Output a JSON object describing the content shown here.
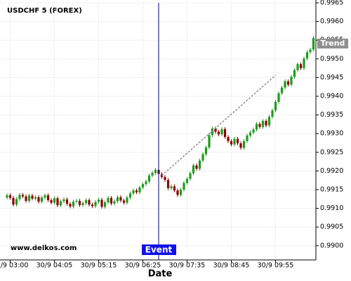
{
  "chart_data": {
    "type": "candlestick",
    "title": "USDCHF 5 (FOREX)",
    "x_label": "Date",
    "watermark": "www.delkos.com",
    "up_color": "#1e9a1e",
    "down_color": "#8b0000",
    "grid": true,
    "ylim": [
      0.98962,
      0.9965
    ],
    "yticks": [
      {
        "value": 0.99,
        "label": "0.9900"
      },
      0.9905,
      {
        "value": 0.991,
        "label": "0.9910"
      },
      0.9915,
      {
        "value": 0.992,
        "label": "0.9920"
      },
      0.9925,
      {
        "value": 0.993,
        "label": "0.9930"
      },
      0.9935,
      {
        "value": 0.994,
        "label": "0.9940"
      },
      0.9945,
      {
        "value": 0.995,
        "label": "0.9950"
      },
      0.9955,
      {
        "value": 0.996,
        "label": "0.9960"
      },
      0.9965
    ],
    "categories": [
      null,
      "30/9 03:00",
      null,
      null,
      null,
      null,
      null,
      null,
      null,
      null,
      null,
      null,
      null,
      null,
      null,
      "30/9 04:05",
      null,
      null,
      null,
      null,
      null,
      null,
      null,
      null,
      null,
      null,
      null,
      null,
      null,
      "30/9 05:15",
      null,
      null,
      null,
      null,
      null,
      null,
      null,
      null,
      null,
      null,
      null,
      null,
      null,
      "30/9 06:25",
      null,
      null,
      null,
      null,
      null,
      null,
      null,
      null,
      null,
      null,
      null,
      null,
      null,
      "30/9 07:35",
      null,
      null,
      null,
      null,
      null,
      null,
      null,
      null,
      null,
      null,
      null,
      null,
      null,
      "30/9 08:45",
      null,
      null,
      null,
      null,
      null,
      null,
      null,
      null,
      null,
      null,
      null,
      null,
      null,
      "30/9 09:55",
      null,
      null,
      null,
      null,
      null,
      null,
      null,
      null,
      null,
      null,
      null,
      null
    ],
    "open": [
      0.99129,
      0.99135,
      0.99128,
      0.9911,
      0.99125,
      0.99136,
      0.99132,
      0.9912,
      0.99134,
      0.99126,
      0.9913,
      0.99118,
      0.99129,
      0.99135,
      0.99122,
      0.99115,
      0.99127,
      0.99108,
      0.99119,
      0.99124,
      0.99112,
      0.99105,
      0.99118,
      0.9912,
      0.99109,
      0.99114,
      0.99122,
      0.9911,
      0.99106,
      0.99117,
      0.99123,
      0.99104,
      0.99116,
      0.99128,
      0.99113,
      0.99119,
      0.9913,
      0.99121,
      0.99115,
      0.99129,
      0.9914,
      0.99148,
      0.99143,
      0.99156,
      0.99165,
      0.99172,
      0.99188,
      0.99195,
      0.99203,
      0.99192,
      0.99184,
      0.99176,
      0.99154,
      0.99159,
      0.99148,
      0.99136,
      0.9915,
      0.99168,
      0.99179,
      0.99194,
      0.99215,
      0.99206,
      0.99228,
      0.99245,
      0.99263,
      0.99296,
      0.99314,
      0.99305,
      0.99298,
      0.99312,
      0.99291,
      0.9928,
      0.99271,
      0.99286,
      0.99274,
      0.99262,
      0.9928,
      0.99295,
      0.99303,
      0.99311,
      0.99326,
      0.99318,
      0.99334,
      0.99322,
      0.99345,
      0.99362,
      0.99385,
      0.99408,
      0.99423,
      0.9944,
      0.99431,
      0.99452,
      0.9947,
      0.99486,
      0.99475,
      0.99501,
      0.99518,
      0.99525
    ],
    "high": [
      0.9914,
      0.9914,
      0.99133,
      0.9913,
      0.99141,
      0.99141,
      0.99137,
      0.99139,
      0.99139,
      0.99135,
      0.99135,
      0.99134,
      0.9914,
      0.9914,
      0.99127,
      0.99132,
      0.99132,
      0.99124,
      0.99129,
      0.99129,
      0.99117,
      0.99123,
      0.99125,
      0.99125,
      0.99119,
      0.99127,
      0.99127,
      0.99115,
      0.99122,
      0.99128,
      0.99128,
      0.99121,
      0.99133,
      0.99133,
      0.99124,
      0.99135,
      0.99135,
      0.99126,
      0.99134,
      0.99145,
      0.99153,
      0.99153,
      0.99161,
      0.9917,
      0.99177,
      0.99193,
      0.992,
      0.99208,
      0.99208,
      0.99197,
      0.99189,
      0.99181,
      0.99164,
      0.99164,
      0.99153,
      0.99155,
      0.99173,
      0.99184,
      0.99199,
      0.9922,
      0.9922,
      0.99233,
      0.9925,
      0.99268,
      0.99301,
      0.99319,
      0.99319,
      0.9931,
      0.99317,
      0.99317,
      0.99296,
      0.99285,
      0.99291,
      0.99291,
      0.99279,
      0.99285,
      0.993,
      0.99308,
      0.99316,
      0.99331,
      0.99331,
      0.99339,
      0.99339,
      0.9935,
      0.99367,
      0.9939,
      0.99413,
      0.99428,
      0.99445,
      0.99445,
      0.99457,
      0.99475,
      0.99491,
      0.99491,
      0.99506,
      0.99523,
      0.9953,
      0.99561
    ],
    "low": [
      0.99124,
      0.99123,
      0.99105,
      0.99105,
      0.9912,
      0.99127,
      0.99115,
      0.99115,
      0.99121,
      0.99121,
      0.99113,
      0.99113,
      0.99124,
      0.99117,
      0.9911,
      0.9911,
      0.99103,
      0.99103,
      0.99114,
      0.99107,
      0.991,
      0.991,
      0.99113,
      0.99104,
      0.99104,
      0.99109,
      0.99105,
      0.99101,
      0.99101,
      0.99112,
      0.99099,
      0.99099,
      0.99111,
      0.99108,
      0.99108,
      0.99114,
      0.99116,
      0.9911,
      0.9911,
      0.99124,
      0.99135,
      0.99138,
      0.99138,
      0.99151,
      0.9916,
      0.99167,
      0.99183,
      0.9919,
      0.99187,
      0.99179,
      0.99171,
      0.99149,
      0.99149,
      0.99143,
      0.99131,
      0.99131,
      0.99145,
      0.99163,
      0.99174,
      0.99189,
      0.99201,
      0.99201,
      0.99223,
      0.9924,
      0.99258,
      0.99291,
      0.993,
      0.99293,
      0.99293,
      0.99286,
      0.99275,
      0.99266,
      0.99266,
      0.99269,
      0.99257,
      0.99257,
      0.99275,
      0.9929,
      0.99298,
      0.99306,
      0.99313,
      0.99313,
      0.99317,
      0.99317,
      0.9934,
      0.99357,
      0.9938,
      0.99403,
      0.99418,
      0.99426,
      0.99426,
      0.99447,
      0.99465,
      0.9947,
      0.9947,
      0.99496,
      0.99513,
      0.9952
    ],
    "close": [
      0.99135,
      0.99128,
      0.9911,
      0.99125,
      0.99136,
      0.99132,
      0.9912,
      0.99134,
      0.99126,
      0.9913,
      0.99118,
      0.99129,
      0.99135,
      0.99122,
      0.99115,
      0.99127,
      0.99108,
      0.99119,
      0.99124,
      0.99112,
      0.99105,
      0.99118,
      0.9912,
      0.99109,
      0.99114,
      0.99122,
      0.9911,
      0.99106,
      0.99117,
      0.99123,
      0.99104,
      0.99116,
      0.99128,
      0.99113,
      0.99119,
      0.9913,
      0.99121,
      0.99115,
      0.99129,
      0.9914,
      0.99148,
      0.99143,
      0.99156,
      0.99165,
      0.99172,
      0.99188,
      0.99195,
      0.99203,
      0.99192,
      0.99184,
      0.99176,
      0.99154,
      0.99159,
      0.99148,
      0.99136,
      0.9915,
      0.99168,
      0.99179,
      0.99194,
      0.99215,
      0.99206,
      0.99228,
      0.99245,
      0.99263,
      0.99296,
      0.99314,
      0.99305,
      0.99298,
      0.99312,
      0.99291,
      0.9928,
      0.99271,
      0.99286,
      0.99274,
      0.99262,
      0.9928,
      0.99295,
      0.99303,
      0.99311,
      0.99326,
      0.99318,
      0.99334,
      0.99322,
      0.99345,
      0.99362,
      0.99385,
      0.99408,
      0.99423,
      0.9944,
      0.99431,
      0.99452,
      0.9947,
      0.99486,
      0.99475,
      0.99501,
      0.99518,
      0.99525,
      0.99556
    ],
    "event": {
      "label": "Event",
      "index": 48,
      "color": "#1010e8"
    },
    "trend": {
      "label": "Trend",
      "x": [
        49,
        85
      ],
      "y": [
        0.99188,
        0.99456
      ],
      "tag_value": 0.99541,
      "color": "#909090"
    }
  }
}
